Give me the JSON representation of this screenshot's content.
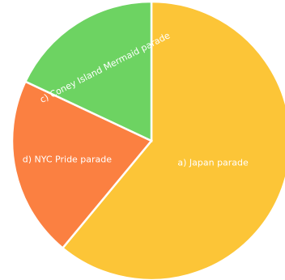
{
  "chart_data": {
    "type": "pie",
    "title": "",
    "legend": "none",
    "slices": [
      {
        "label": "a) Japan parade",
        "value": 61,
        "color": "#FCC537"
      },
      {
        "label": "d) NYC Pride parade",
        "value": 21,
        "color": "#FB8041"
      },
      {
        "label": "c) Coney Island Mermaid parade",
        "value": 18,
        "color": "#6DD362"
      }
    ]
  }
}
